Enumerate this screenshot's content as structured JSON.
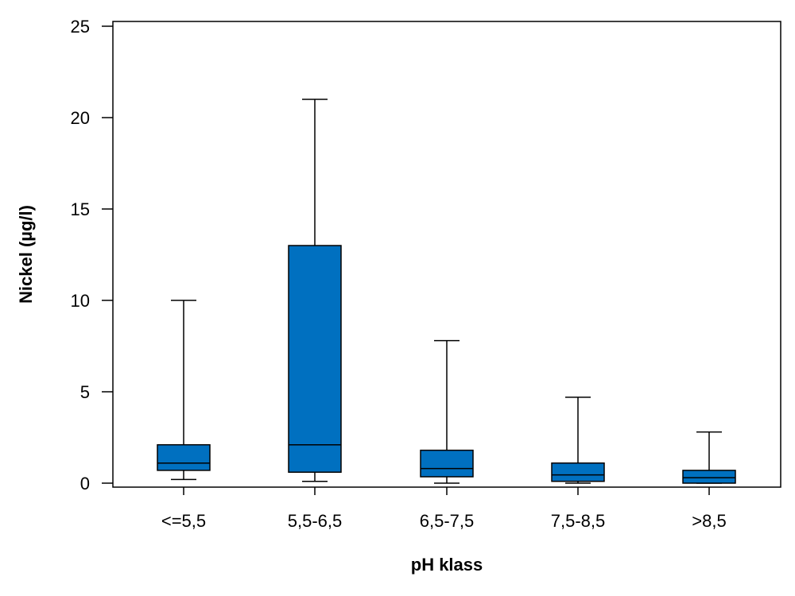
{
  "chart_data": {
    "type": "boxplot",
    "xlabel": "pH klass",
    "ylabel": "Nickel (µg/l)",
    "ylim": [
      0,
      25
    ],
    "yticks": [
      0,
      5,
      10,
      15,
      20,
      25
    ],
    "grid": false,
    "box_color": "#0070C0",
    "categories": [
      "<=5,5",
      "5,5-6,5",
      "6,5-7,5",
      "7,5-8,5",
      ">8,5"
    ],
    "boxes": [
      {
        "whisker_low": 0.2,
        "q1": 0.7,
        "median": 1.1,
        "q3": 2.1,
        "whisker_high": 10.0
      },
      {
        "whisker_low": 0.1,
        "q1": 0.6,
        "median": 2.1,
        "q3": 13.0,
        "whisker_high": 21.0
      },
      {
        "whisker_low": 0.0,
        "q1": 0.35,
        "median": 0.8,
        "q3": 1.8,
        "whisker_high": 7.8
      },
      {
        "whisker_low": 0.0,
        "q1": 0.1,
        "median": 0.45,
        "q3": 1.1,
        "whisker_high": 4.7
      },
      {
        "whisker_low": 0.0,
        "q1": 0.0,
        "median": 0.3,
        "q3": 0.7,
        "whisker_high": 2.8
      }
    ]
  }
}
